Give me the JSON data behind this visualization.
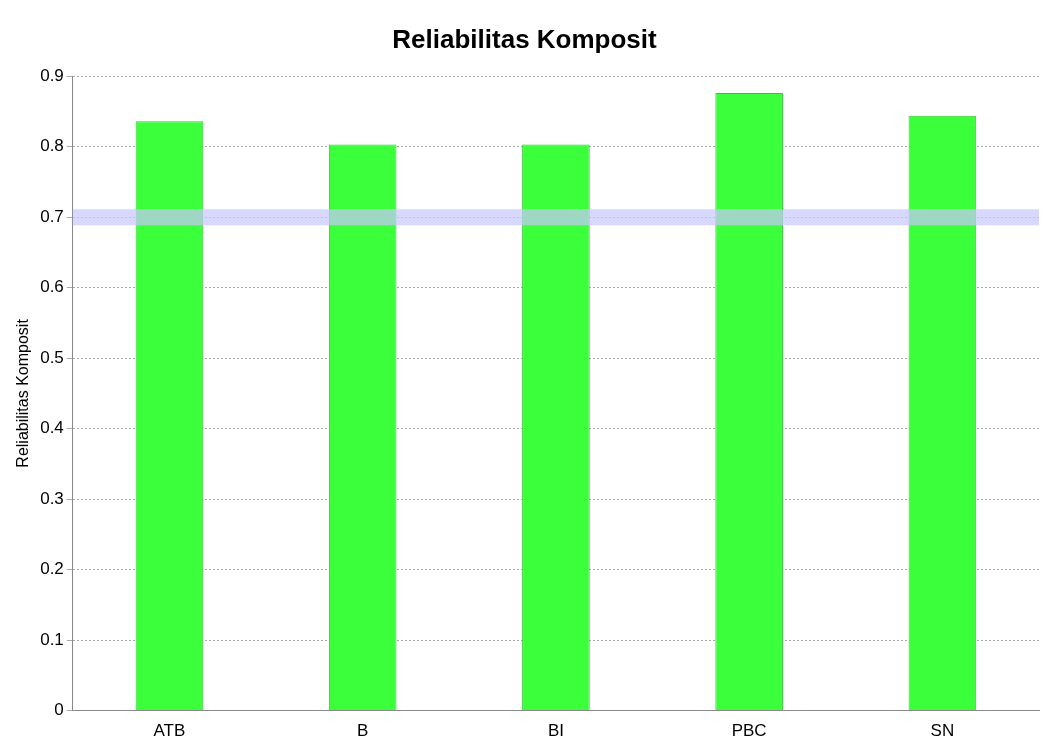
{
  "chart_data": {
    "type": "bar",
    "title": "Reliabilitas Komposit",
    "ylabel": "Reliabilitas Komposit",
    "categories": [
      "ATB",
      "B",
      "BI",
      "PBC",
      "SN"
    ],
    "values": [
      0.836,
      0.803,
      0.803,
      0.876,
      0.844
    ],
    "color": "#3cff3c",
    "ylim": [
      0,
      0.9
    ],
    "yticks": [
      0,
      0.1,
      0.2,
      0.3,
      0.4,
      0.5,
      0.6,
      0.7,
      0.8,
      0.9
    ],
    "grid": "y",
    "ref_lines": [
      {
        "axis": "y",
        "value": 0.7,
        "color": "#c8c8ff"
      }
    ],
    "legend": false
  }
}
